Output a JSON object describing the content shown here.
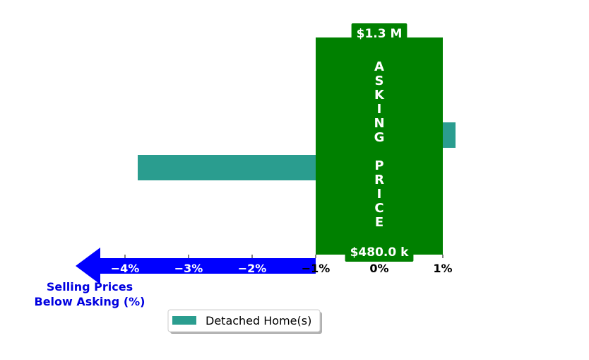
{
  "chart_data": {
    "type": "bar",
    "orientation": "horizontal",
    "series": [
      {
        "name": "Detached Home(s)",
        "color": "#2a9d8f",
        "values": [
          1.2,
          -3.8
        ]
      }
    ],
    "x_ticks": [
      "−4%",
      "−3%",
      "−2%",
      "−1%",
      "0%",
      "1%"
    ],
    "x_tick_values": [
      -4,
      -3,
      -2,
      -1,
      0,
      1
    ],
    "xlim": [
      -4.9,
      2.3
    ],
    "grid": false,
    "legend_position": "bottom-left"
  },
  "asking_band": {
    "color": "#008000",
    "range": [
      -1,
      1
    ],
    "top_label": "$1.3 M",
    "bottom_label": "$480.0 k",
    "letters": [
      "A",
      "S",
      "K",
      "I",
      "N",
      "G",
      "",
      "P",
      "R",
      "I",
      "C",
      "E"
    ]
  },
  "arrow": {
    "color": "#0000ff",
    "from": -1,
    "label_line1": "Selling Prices",
    "label_line2": "Below Asking (%)"
  }
}
